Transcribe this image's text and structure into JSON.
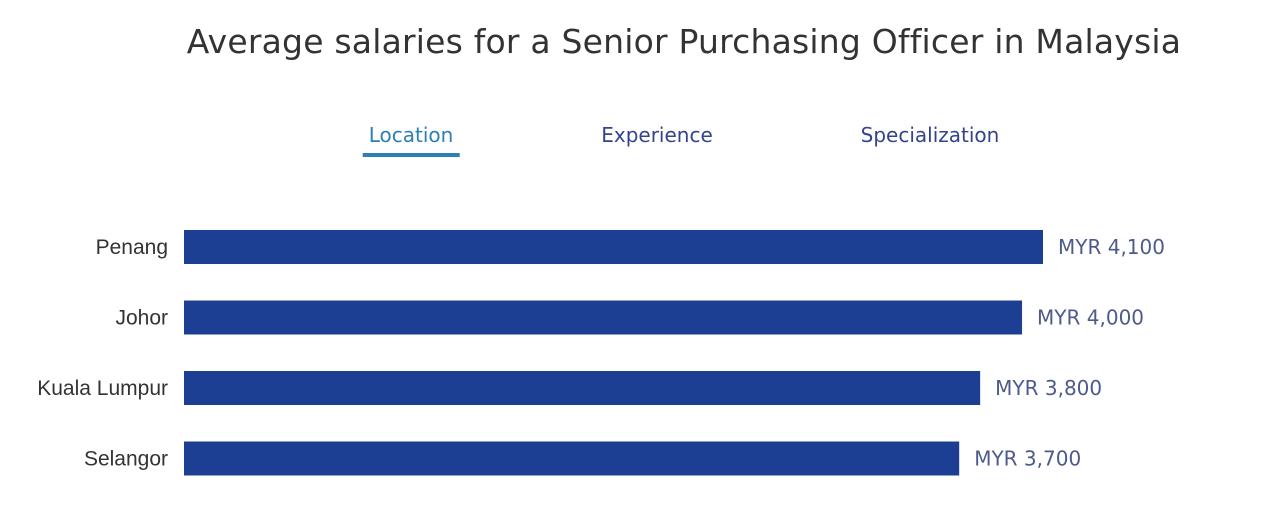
{
  "title": "Average salaries for a Senior Purchasing Officer in Malaysia",
  "tabs": [
    {
      "label": "Location",
      "active": true
    },
    {
      "label": "Experience",
      "active": false
    },
    {
      "label": "Specialization",
      "active": false
    }
  ],
  "colors": {
    "bar": "#1c3f94",
    "active_tab": "#2e7fb5",
    "tab": "#33448e"
  },
  "chart_data": {
    "type": "bar",
    "orientation": "horizontal",
    "categories": [
      "Penang",
      "Johor",
      "Kuala Lumpur",
      "Selangor"
    ],
    "values": [
      4100,
      4000,
      3800,
      3700
    ],
    "value_labels": [
      "MYR 4,100",
      "MYR 4,000",
      "MYR 3,800",
      "MYR 3,700"
    ],
    "title": "Average salaries for a Senior Purchasing Officer in Malaysia",
    "xlabel": "",
    "ylabel": "",
    "xlim": [
      0,
      4100
    ],
    "grid": false,
    "legend": "none"
  }
}
